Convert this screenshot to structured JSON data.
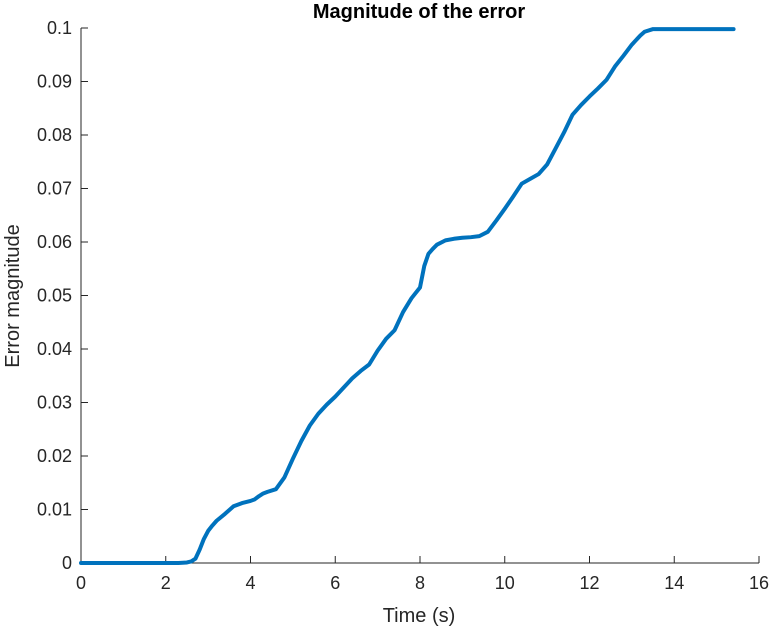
{
  "chart_data": {
    "type": "line",
    "title": "Magnitude of the error",
    "xlabel": "Time (s)",
    "ylabel": "Error magnitude",
    "xlim": [
      0,
      16
    ],
    "ylim": [
      0,
      0.1
    ],
    "xticks": [
      0,
      2,
      4,
      6,
      8,
      10,
      12,
      14,
      16
    ],
    "yticks": [
      0,
      0.01,
      0.02,
      0.03,
      0.04,
      0.05,
      0.06,
      0.07,
      0.08,
      0.09,
      0.1
    ],
    "xtick_labels": [
      "0",
      "2",
      "4",
      "6",
      "8",
      "10",
      "12",
      "14",
      "16"
    ],
    "ytick_labels": [
      "0",
      "0.01",
      "0.02",
      "0.03",
      "0.04",
      "0.05",
      "0.06",
      "0.07",
      "0.08",
      "0.09",
      "0.1"
    ],
    "grid": false,
    "line_color": "#0072BD",
    "series": [
      {
        "x": [
          0,
          0.5,
          1.0,
          1.5,
          2.0,
          2.3,
          2.5,
          2.6,
          2.7,
          2.8,
          2.9,
          3.0,
          3.1,
          3.2,
          3.4,
          3.6,
          3.8,
          4.0,
          4.1,
          4.2,
          4.3,
          4.4,
          4.6,
          4.8,
          5.0,
          5.2,
          5.4,
          5.6,
          5.8,
          6.0,
          6.2,
          6.4,
          6.6,
          6.8,
          7.0,
          7.2,
          7.4,
          7.6,
          7.8,
          8.0,
          8.1,
          8.2,
          8.3,
          8.4,
          8.6,
          8.8,
          9.0,
          9.2,
          9.4,
          9.6,
          9.8,
          10.0,
          10.2,
          10.4,
          10.6,
          10.8,
          11.0,
          11.2,
          11.4,
          11.6,
          11.8,
          12.0,
          12.2,
          12.4,
          12.6,
          12.8,
          13.0,
          13.2,
          13.3,
          13.5,
          14.0,
          14.5,
          15.0,
          15.4
        ],
        "y": [
          0,
          0,
          0,
          0,
          0,
          0,
          0.0001,
          0.0003,
          0.0008,
          0.0025,
          0.0045,
          0.006,
          0.007,
          0.0079,
          0.0092,
          0.0106,
          0.0112,
          0.0116,
          0.0119,
          0.0125,
          0.013,
          0.0133,
          0.0138,
          0.016,
          0.0195,
          0.0228,
          0.0257,
          0.0279,
          0.0296,
          0.0311,
          0.0328,
          0.0345,
          0.0359,
          0.0371,
          0.0397,
          0.0419,
          0.0435,
          0.0469,
          0.0495,
          0.0515,
          0.0555,
          0.0578,
          0.0587,
          0.0595,
          0.0603,
          0.0606,
          0.0608,
          0.0609,
          0.0611,
          0.0619,
          0.064,
          0.0662,
          0.0685,
          0.0709,
          0.0718,
          0.0727,
          0.0745,
          0.0775,
          0.0805,
          0.0838,
          0.0856,
          0.0872,
          0.0887,
          0.0903,
          0.0928,
          0.0948,
          0.0969,
          0.0986,
          0.0993,
          0.0998,
          0.0998,
          0.0998,
          0.0998,
          0.0998
        ]
      }
    ]
  }
}
